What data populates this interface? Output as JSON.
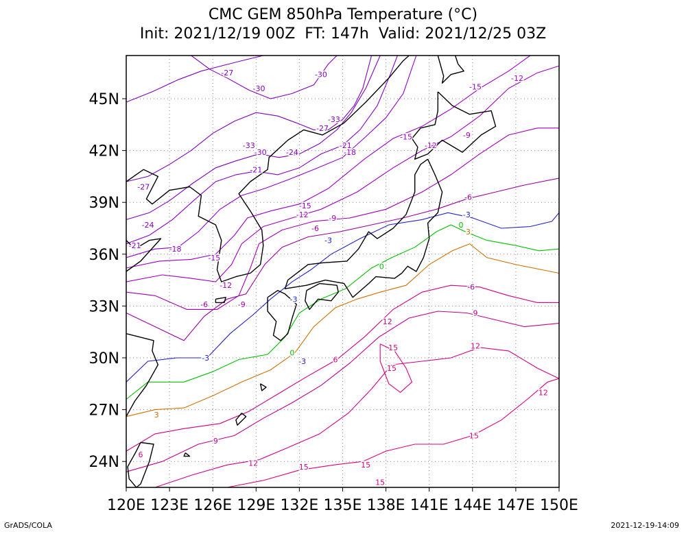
{
  "title": {
    "line1": "CMC GEM 850hPa Temperature (°C)",
    "line2": "Init: 2021/12/19 00Z  FT: 147h  Valid: 2021/12/25 03Z"
  },
  "axes": {
    "lat_labels": [
      "45N",
      "42N",
      "39N",
      "36N",
      "33N",
      "30N",
      "27N",
      "24N"
    ],
    "lon_labels": [
      "120E",
      "123E",
      "126E",
      "129E",
      "132E",
      "135E",
      "138E",
      "141E",
      "144E",
      "147E",
      "150E"
    ],
    "lon_range": [
      120,
      150
    ],
    "lat_range": [
      22.5,
      47.5
    ]
  },
  "contours": {
    "colors": {
      "-33": "#8000c0",
      "-30": "#8000c0",
      "-27": "#8000c0",
      "-24": "#8000c0",
      "-21": "#8a00c8",
      "-18": "#9000d0",
      "-15": "#9a00c8",
      "-12": "#a000c0",
      "-9": "#a000b0",
      "-6": "#9a00a0",
      "-3": "#2020d0",
      "0": "#00c000",
      "3": "#d07000",
      "6": "#d00080",
      "9": "#c00090",
      "12": "#d00088",
      "15": "#e0007a"
    },
    "labels": [
      {
        "text": "-27",
        "lon": 127.0,
        "lat": 46.5
      },
      {
        "text": "-30",
        "lon": 133.5,
        "lat": 46.4
      },
      {
        "text": "-30",
        "lon": 129.2,
        "lat": 45.6
      },
      {
        "text": "-12",
        "lon": 147.1,
        "lat": 46.2
      },
      {
        "text": "-15",
        "lon": 144.2,
        "lat": 45.7
      },
      {
        "text": "-33",
        "lon": 134.4,
        "lat": 43.8
      },
      {
        "text": "-27",
        "lon": 133.6,
        "lat": 43.3
      },
      {
        "text": "-15",
        "lon": 139.4,
        "lat": 42.8
      },
      {
        "text": "-9",
        "lon": 143.6,
        "lat": 42.9
      },
      {
        "text": "-33",
        "lon": 128.5,
        "lat": 42.3
      },
      {
        "text": "-30",
        "lon": 129.3,
        "lat": 41.9
      },
      {
        "text": "-24",
        "lon": 131.5,
        "lat": 41.9
      },
      {
        "text": "-21",
        "lon": 135.2,
        "lat": 42.3
      },
      {
        "text": "-18",
        "lon": 135.5,
        "lat": 41.9
      },
      {
        "text": "-12",
        "lon": 141.1,
        "lat": 42.3
      },
      {
        "text": "-21",
        "lon": 129.0,
        "lat": 40.9
      },
      {
        "text": "-27",
        "lon": 121.2,
        "lat": 39.9
      },
      {
        "text": "-15",
        "lon": 132.4,
        "lat": 38.8
      },
      {
        "text": "-12",
        "lon": 132.2,
        "lat": 38.3
      },
      {
        "text": "-9",
        "lon": 134.3,
        "lat": 38.1
      },
      {
        "text": "-6",
        "lon": 143.7,
        "lat": 39.3
      },
      {
        "text": "-24",
        "lon": 121.5,
        "lat": 37.7
      },
      {
        "text": "-6",
        "lon": 133.1,
        "lat": 37.5
      },
      {
        "text": "-3",
        "lon": 143.6,
        "lat": 38.3
      },
      {
        "text": "0",
        "lon": 143.2,
        "lat": 37.7
      },
      {
        "text": "3",
        "lon": 143.7,
        "lat": 37.3
      },
      {
        "text": "-21",
        "lon": 120.6,
        "lat": 36.5
      },
      {
        "text": "-18",
        "lon": 123.4,
        "lat": 36.3
      },
      {
        "text": "-15",
        "lon": 126.1,
        "lat": 35.8
      },
      {
        "text": "-3",
        "lon": 134.0,
        "lat": 36.8
      },
      {
        "text": "0",
        "lon": 137.7,
        "lat": 35.3
      },
      {
        "text": "-12",
        "lon": 126.9,
        "lat": 34.2
      },
      {
        "text": "-9",
        "lon": 128.0,
        "lat": 33.1
      },
      {
        "text": "-6",
        "lon": 125.4,
        "lat": 33.1
      },
      {
        "text": "-3",
        "lon": 131.6,
        "lat": 33.4
      },
      {
        "text": "-6",
        "lon": 143.9,
        "lat": 34.1
      },
      {
        "text": "9",
        "lon": 144.2,
        "lat": 32.6
      },
      {
        "text": "12",
        "lon": 138.1,
        "lat": 32.1
      },
      {
        "text": "12",
        "lon": 144.2,
        "lat": 30.7
      },
      {
        "text": "15",
        "lon": 138.5,
        "lat": 30.6
      },
      {
        "text": "-3",
        "lon": 125.5,
        "lat": 30.0
      },
      {
        "text": "0",
        "lon": 131.5,
        "lat": 30.3
      },
      {
        "text": "-3",
        "lon": 132.2,
        "lat": 29.8
      },
      {
        "text": "6",
        "lon": 134.5,
        "lat": 29.9
      },
      {
        "text": "15",
        "lon": 138.4,
        "lat": 29.4
      },
      {
        "text": "12",
        "lon": 148.9,
        "lat": 28.0
      },
      {
        "text": "3",
        "lon": 122.1,
        "lat": 26.7
      },
      {
        "text": "15",
        "lon": 144.1,
        "lat": 25.5
      },
      {
        "text": "9",
        "lon": 126.2,
        "lat": 25.2
      },
      {
        "text": "6",
        "lon": 121.0,
        "lat": 24.4
      },
      {
        "text": "12",
        "lon": 128.8,
        "lat": 23.9
      },
      {
        "text": "15",
        "lon": 132.3,
        "lat": 23.7
      },
      {
        "text": "15",
        "lon": 136.6,
        "lat": 23.8
      },
      {
        "text": "15",
        "lon": 137.6,
        "lat": 22.8
      }
    ]
  },
  "footer": {
    "left": "GrADS/COLA",
    "right": "2021-12-19-14:09"
  }
}
